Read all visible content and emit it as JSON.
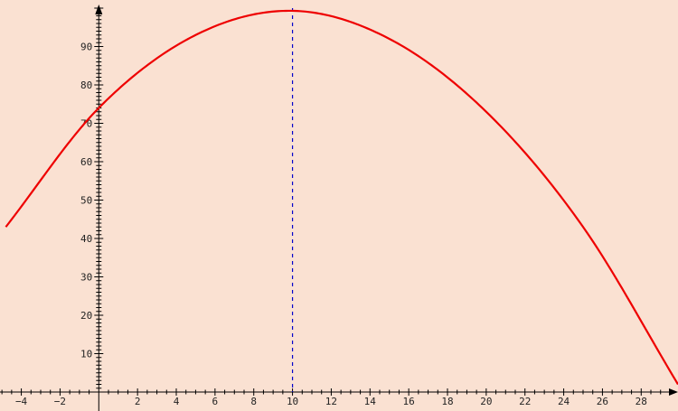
{
  "chart_data": {
    "type": "line",
    "title": "",
    "xlabel": "",
    "ylabel": "",
    "xlim": [
      -5.1,
      29.9
    ],
    "ylim": [
      0,
      100
    ],
    "x_ticks": [
      -4,
      -2,
      2,
      4,
      6,
      8,
      10,
      12,
      14,
      16,
      18,
      20,
      22,
      24,
      26,
      28
    ],
    "y_ticks": [
      10,
      20,
      30,
      40,
      50,
      60,
      70,
      80,
      90
    ],
    "grid": false,
    "colors": {
      "background": "#fae1d2",
      "curve": "#ee0000",
      "axis_line": "#0000cc",
      "axes": "#000000"
    },
    "series": [
      {
        "points": [
          [
            -4.8,
            43
          ],
          [
            0,
            74
          ],
          [
            5,
            93
          ],
          [
            10,
            99.3
          ],
          [
            15,
            92
          ],
          [
            20,
            73
          ],
          [
            25,
            43
          ],
          [
            29.9,
            2
          ]
        ]
      }
    ],
    "vertical_line": {
      "x": 10,
      "style": "dashed"
    }
  }
}
